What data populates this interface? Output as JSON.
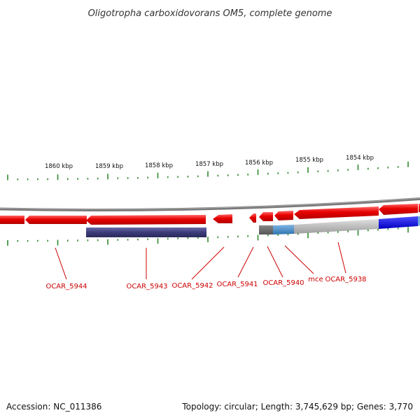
{
  "title": "Oligotropha carboxidovorans OM5, complete genome",
  "footer": {
    "accession": "Accession: NC_011386",
    "summary": "Topology: circular; Length: 3,745,629 bp; Genes: 3,770"
  },
  "colors": {
    "forward_gene": "#e60000",
    "reverse_gene": "#3b3b7a",
    "backbone": "#808080",
    "tick": "#2e8b2e",
    "label": "#cc0000",
    "grey_bar": "#bbbbbb",
    "light_blue": "#4a90c8",
    "blue": "#0000e6"
  },
  "ruler_labels": [
    "1860 kbp",
    "1859 kbp",
    "1858 kbp",
    "1857 kbp",
    "1856 kbp",
    "1855 kbp",
    "1854 kbp"
  ],
  "gene_labels": [
    "OCAR_5944",
    "OCAR_5943",
    "OCAR_5942",
    "OCAR_5941",
    "OCAR_5940",
    "mce",
    "OCAR_5938"
  ]
}
